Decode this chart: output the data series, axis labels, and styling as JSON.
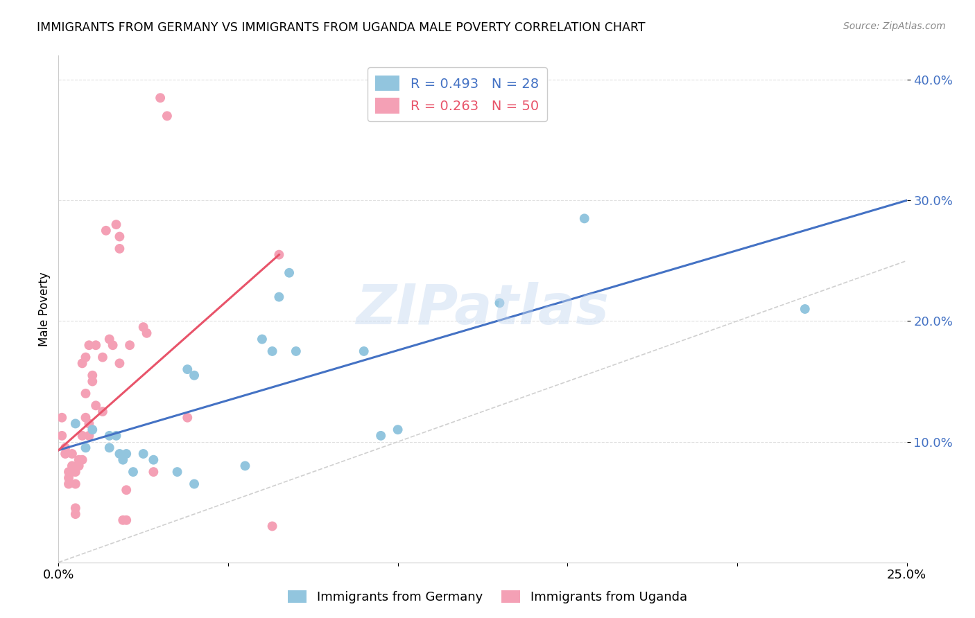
{
  "title": "IMMIGRANTS FROM GERMANY VS IMMIGRANTS FROM UGANDA MALE POVERTY CORRELATION CHART",
  "source": "Source: ZipAtlas.com",
  "ylabel": "Male Poverty",
  "xlim": [
    0.0,
    0.25
  ],
  "ylim": [
    0.0,
    0.42
  ],
  "xticks": [
    0.0,
    0.05,
    0.1,
    0.15,
    0.2,
    0.25
  ],
  "xticklabels": [
    "0.0%",
    "",
    "",
    "",
    "",
    "25.0%"
  ],
  "yticks": [
    0.1,
    0.2,
    0.3,
    0.4
  ],
  "yticklabels": [
    "10.0%",
    "20.0%",
    "30.0%",
    "40.0%"
  ],
  "germany_R": 0.493,
  "germany_N": 28,
  "uganda_R": 0.263,
  "uganda_N": 50,
  "germany_color": "#92c5de",
  "uganda_color": "#f4a0b5",
  "germany_line_color": "#4472c4",
  "uganda_line_color": "#e8546a",
  "diagonal_color": "#d0d0d0",
  "watermark": "ZIPatlas",
  "germany_line_x0": 0.0,
  "germany_line_y0": 0.093,
  "germany_line_x1": 0.25,
  "germany_line_y1": 0.3,
  "uganda_line_x0": 0.0,
  "uganda_line_y0": 0.093,
  "uganda_line_x1": 0.065,
  "uganda_line_y1": 0.255,
  "germany_x": [
    0.005,
    0.008,
    0.01,
    0.015,
    0.015,
    0.017,
    0.018,
    0.019,
    0.02,
    0.022,
    0.025,
    0.028,
    0.035,
    0.038,
    0.04,
    0.04,
    0.055,
    0.06,
    0.063,
    0.065,
    0.068,
    0.07,
    0.09,
    0.095,
    0.1,
    0.13,
    0.155,
    0.22
  ],
  "germany_y": [
    0.115,
    0.095,
    0.11,
    0.095,
    0.105,
    0.105,
    0.09,
    0.085,
    0.09,
    0.075,
    0.09,
    0.085,
    0.075,
    0.16,
    0.155,
    0.065,
    0.08,
    0.185,
    0.175,
    0.22,
    0.24,
    0.175,
    0.175,
    0.105,
    0.11,
    0.215,
    0.285,
    0.21
  ],
  "uganda_x": [
    0.001,
    0.001,
    0.002,
    0.002,
    0.003,
    0.003,
    0.003,
    0.004,
    0.004,
    0.004,
    0.005,
    0.005,
    0.005,
    0.005,
    0.006,
    0.006,
    0.007,
    0.007,
    0.007,
    0.008,
    0.008,
    0.008,
    0.009,
    0.009,
    0.009,
    0.01,
    0.01,
    0.011,
    0.011,
    0.013,
    0.013,
    0.014,
    0.015,
    0.016,
    0.017,
    0.018,
    0.018,
    0.018,
    0.019,
    0.02,
    0.02,
    0.021,
    0.025,
    0.026,
    0.028,
    0.03,
    0.032,
    0.038,
    0.063,
    0.065
  ],
  "uganda_y": [
    0.105,
    0.12,
    0.09,
    0.095,
    0.075,
    0.065,
    0.07,
    0.09,
    0.075,
    0.08,
    0.075,
    0.065,
    0.045,
    0.04,
    0.08,
    0.085,
    0.085,
    0.105,
    0.165,
    0.12,
    0.14,
    0.17,
    0.115,
    0.105,
    0.18,
    0.15,
    0.155,
    0.13,
    0.18,
    0.125,
    0.17,
    0.275,
    0.185,
    0.18,
    0.28,
    0.27,
    0.26,
    0.165,
    0.035,
    0.035,
    0.06,
    0.18,
    0.195,
    0.19,
    0.075,
    0.385,
    0.37,
    0.12,
    0.03,
    0.255
  ]
}
